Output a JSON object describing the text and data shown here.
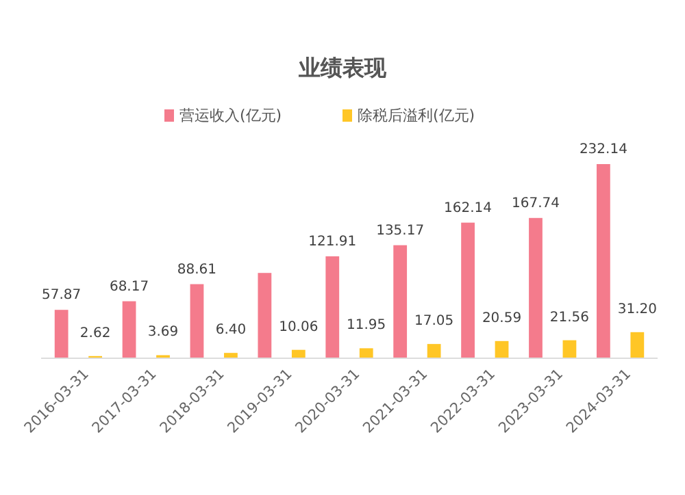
{
  "chart_data": {
    "type": "bar",
    "title": "业绩表现",
    "categories": [
      "2016-03-31",
      "2017-03-31",
      "2018-03-31",
      "2019-03-31",
      "2020-03-31",
      "2021-03-31",
      "2022-03-31",
      "2023-03-31",
      "2024-03-31"
    ],
    "series": [
      {
        "name": "营运收入(亿元)",
        "color": "#f47b8c",
        "values": [
          57.87,
          68.17,
          88.61,
          102,
          121.91,
          135.17,
          162.14,
          167.74,
          232.14
        ],
        "value_labels": [
          "57.87",
          "68.17",
          "88.61",
          null,
          "121.91",
          "135.17",
          "162.14",
          "167.74",
          "232.14"
        ]
      },
      {
        "name": "除税后溢利(亿元)",
        "color": "#ffc626",
        "values": [
          2.62,
          3.69,
          6.4,
          10.06,
          11.95,
          17.05,
          20.59,
          21.56,
          31.2
        ],
        "value_labels": [
          "2.62",
          "3.69",
          "6.40",
          "10.06",
          "11.95",
          "17.05",
          "20.59",
          "21.56",
          "31.20"
        ]
      }
    ],
    "legend": "top",
    "grid": false
  }
}
